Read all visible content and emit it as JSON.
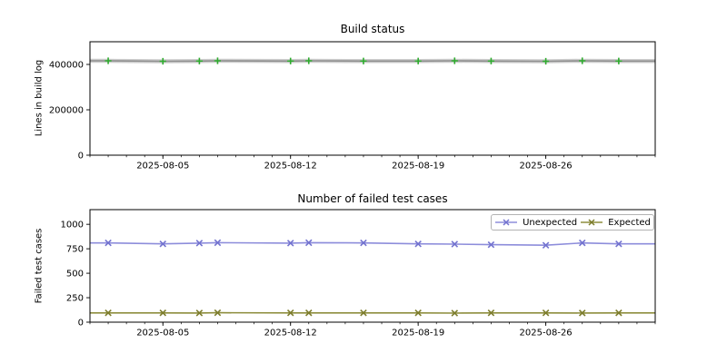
{
  "figure": {
    "background": "#ffffff",
    "frame_color": "#000000",
    "tick_color": "#000000",
    "text_color": "#000000"
  },
  "chart_data": [
    {
      "type": "line",
      "title": "Build status",
      "xlabel": "",
      "ylabel": "Lines in build log",
      "x_range": [
        "2025-08-01",
        "2025-09-01"
      ],
      "ylim": [
        0,
        500000
      ],
      "yticks": [
        0,
        200000,
        400000
      ],
      "ytick_labels": [
        "0",
        "200000",
        "400000"
      ],
      "xticks": [
        "2025-08-05",
        "2025-08-12",
        "2025-08-19",
        "2025-08-26"
      ],
      "minor_xtick_interval_days": 1,
      "grid": false,
      "x": [
        "2025-08-02",
        "2025-08-05",
        "2025-08-07",
        "2025-08-08",
        "2025-08-12",
        "2025-08-13",
        "2025-08-16",
        "2025-08-19",
        "2025-08-21",
        "2025-08-23",
        "2025-08-26",
        "2025-08-28",
        "2025-08-30"
      ],
      "series": [
        {
          "name": "Lines in build log",
          "values": [
            416000,
            414000,
            415000,
            416000,
            415000,
            416000,
            415000,
            415000,
            416000,
            415000,
            414000,
            416000,
            415000
          ],
          "line_color": "#8f8f8f",
          "halo_color": "#cdcdcd",
          "marker": "+",
          "marker_color": "#2eac2e",
          "extend_to_edges": true
        }
      ],
      "legend": null
    },
    {
      "type": "line",
      "title": "Number of failed test cases",
      "xlabel": "",
      "ylabel": "Failed test cases",
      "x_range": [
        "2025-08-01",
        "2025-09-01"
      ],
      "ylim": [
        0,
        1150
      ],
      "yticks": [
        0,
        250,
        500,
        750,
        1000
      ],
      "ytick_labels": [
        "0",
        "250",
        "500",
        "750",
        "1000"
      ],
      "xticks": [
        "2025-08-05",
        "2025-08-12",
        "2025-08-19",
        "2025-08-26"
      ],
      "minor_xtick_interval_days": 1,
      "grid": false,
      "x": [
        "2025-08-02",
        "2025-08-05",
        "2025-08-07",
        "2025-08-08",
        "2025-08-12",
        "2025-08-13",
        "2025-08-16",
        "2025-08-19",
        "2025-08-21",
        "2025-08-23",
        "2025-08-26",
        "2025-08-28",
        "2025-08-30"
      ],
      "series": [
        {
          "name": "Unexpected",
          "values": [
            810,
            800,
            808,
            812,
            808,
            812,
            810,
            800,
            798,
            792,
            786,
            810,
            800
          ],
          "line_color": "#8d8ddb",
          "halo_color": null,
          "marker": "x",
          "marker_color": "#7272cf",
          "extend_to_edges": true
        },
        {
          "name": "Expected",
          "values": [
            95,
            95,
            94,
            96,
            95,
            95,
            95,
            95,
            93,
            95,
            95,
            94,
            95
          ],
          "line_color": "#8e8e3e",
          "halo_color": null,
          "marker": "x",
          "marker_color": "#7c7c2c",
          "extend_to_edges": true
        }
      ],
      "legend": {
        "location": "upper right"
      }
    }
  ]
}
